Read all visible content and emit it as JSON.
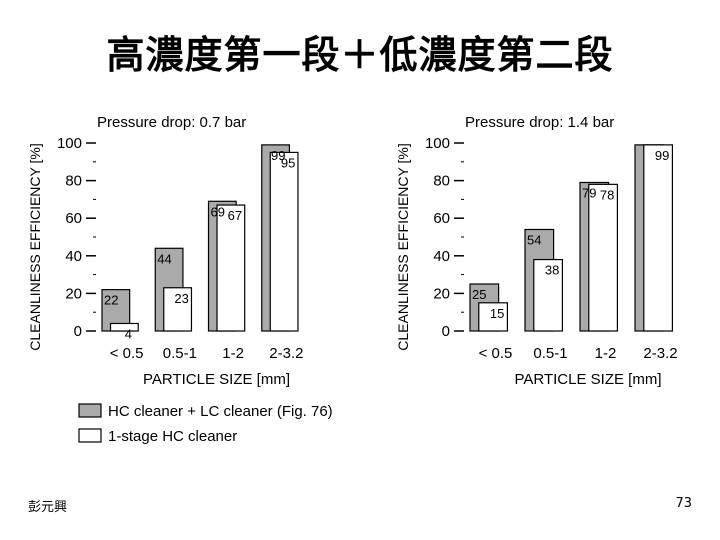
{
  "slide": {
    "title": "高濃度第一段＋低濃度第二段",
    "author": "彭元興",
    "page_number": "73"
  },
  "colors": {
    "hc_lc_bar": "#aaaaaa",
    "single_stage_bar": "#ffffff",
    "outline": "#000000"
  },
  "legend": {
    "position": "bottom-left",
    "items": [
      {
        "label": "HC cleaner + LC cleaner (Fig. 76)",
        "color": "#aaaaaa"
      },
      {
        "label": "1-stage HC cleaner",
        "color": "#ffffff"
      }
    ]
  },
  "chart_data": [
    {
      "type": "bar",
      "title": "Pressure drop: 0.7 bar",
      "xlabel": "PARTICLE SIZE [mm]",
      "ylabel": "CLEANLINESS EFFICIENCY  [%]",
      "ylim": [
        0,
        100
      ],
      "yticks": [
        "0",
        "20",
        "40",
        "60",
        "80",
        "100"
      ],
      "categories": [
        "< 0.5",
        "0.5-1",
        "1-2",
        "2-3.2"
      ],
      "series": [
        {
          "name": "HC cleaner + LC cleaner (Fig. 76)",
          "values": [
            22,
            44,
            69,
            99
          ],
          "labels": [
            "22",
            "44",
            "69",
            "99"
          ]
        },
        {
          "name": "1-stage HC cleaner",
          "values": [
            4,
            23,
            67,
            95
          ],
          "labels": [
            "4",
            "23",
            "67",
            "95"
          ]
        }
      ]
    },
    {
      "type": "bar",
      "title": "Pressure drop: 1.4 bar",
      "xlabel": "PARTICLE SIZE [mm]",
      "ylabel": "CLEANLINESS EFFICIENCY  [%]",
      "ylim": [
        0,
        100
      ],
      "yticks": [
        "0",
        "20",
        "40",
        "60",
        "80",
        "100"
      ],
      "categories": [
        "< 0.5",
        "0.5-1",
        "1-2",
        "2-3.2"
      ],
      "series": [
        {
          "name": "HC cleaner + LC cleaner (Fig. 76)",
          "values": [
            25,
            54,
            79,
            99
          ],
          "labels": [
            "25",
            "54",
            "79",
            ""
          ]
        },
        {
          "name": "1-stage HC cleaner",
          "values": [
            15,
            38,
            78,
            99
          ],
          "labels": [
            "15",
            "38",
            "78",
            "99"
          ]
        }
      ]
    }
  ]
}
